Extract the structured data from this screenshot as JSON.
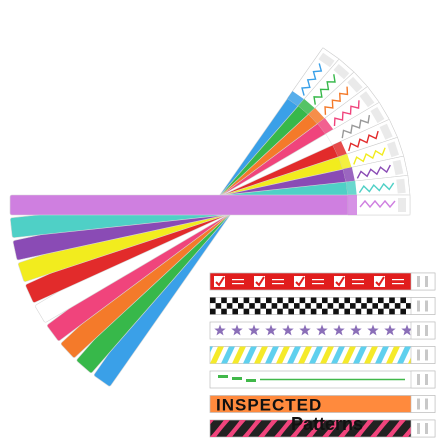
{
  "caption": "Patterns",
  "fan_bands": [
    {
      "color": "#3aa0e8",
      "name": "blue"
    },
    {
      "color": "#37b84a",
      "name": "green"
    },
    {
      "color": "#f47a2a",
      "name": "orange"
    },
    {
      "color": "#f0447c",
      "name": "pink"
    },
    {
      "color": "#ffffff",
      "name": "white"
    },
    {
      "color": "#e22b2b",
      "name": "red"
    },
    {
      "color": "#f2ec1e",
      "name": "yellow"
    },
    {
      "color": "#8a4bb5",
      "name": "purple"
    },
    {
      "color": "#4fd0c6",
      "name": "teal"
    },
    {
      "color": "#cf7fe0",
      "name": "lavender"
    }
  ],
  "pattern_bands": [
    {
      "pattern": "checkmark",
      "bg": "#e11d1d",
      "fg": "#ffffff",
      "label": "",
      "name": "checkmark"
    },
    {
      "pattern": "checker",
      "bg": "#ffffff",
      "fg": "#111111",
      "label": "",
      "name": "checkered"
    },
    {
      "pattern": "stars",
      "bg": "#ffffff",
      "fg": "#8b6fb8",
      "label": "",
      "name": "stars"
    },
    {
      "pattern": "stripes",
      "bg": "#ffffff",
      "fg": "#5fd0ee",
      "fg2": "#f5ea2a",
      "label": "",
      "name": "diagonal-stripes"
    },
    {
      "pattern": "text-small",
      "bg": "#ffffff",
      "fg": "#41b84a",
      "label": "",
      "name": "green-text"
    },
    {
      "pattern": "inspected",
      "bg": "#ff8a3d",
      "fg": "#111111",
      "label": "INSPECTED",
      "name": "inspected"
    },
    {
      "pattern": "zebra",
      "bg": "#222222",
      "fg": "#f0447c",
      "label": "",
      "name": "zebra"
    }
  ]
}
